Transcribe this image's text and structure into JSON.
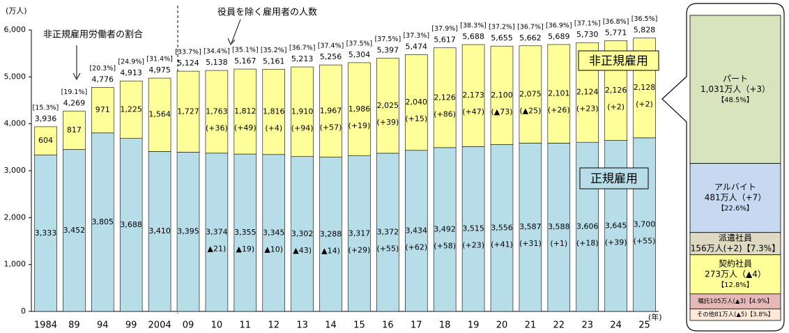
{
  "chart_data": [
    {
      "type": "stacked-bar",
      "y_unit": "(万人)",
      "x_unit": "(年)",
      "annotation_ratio": "非正規雇用労働者の割合",
      "annotation_total": "役員を除く雇用者の人数",
      "categories": [
        "1984",
        "89",
        "94",
        "99",
        "2004",
        "09",
        "10",
        "11",
        "12",
        "13",
        "14",
        "15",
        "16",
        "17",
        "18",
        "19",
        "20",
        "21",
        "22",
        "23",
        "24",
        "25"
      ],
      "series": [
        {
          "name": "正規雇用",
          "color": "#b7dde8",
          "values": [
            3333,
            3452,
            3805,
            3688,
            3410,
            3395,
            3374,
            3355,
            3345,
            3302,
            3288,
            3317,
            3372,
            3434,
            3492,
            3515,
            3556,
            3587,
            3588,
            3606,
            3645,
            3700
          ],
          "value_labels": [
            "3,333",
            "3,452",
            "3,805",
            "3,688",
            "3,410",
            "3,395",
            "3,374",
            "3,355",
            "3,345",
            "3,302",
            "3,288",
            "3,317",
            "3,372",
            "3,434",
            "3,492",
            "3,515",
            "3,556",
            "3,587",
            "3,588",
            "3,606",
            "3,645",
            "3,700"
          ],
          "change_labels": [
            null,
            null,
            null,
            null,
            null,
            null,
            "▲21)",
            "▲19)",
            "▲10)",
            "▲43)",
            "▲14)",
            "(+29)",
            "(+55)",
            "(+62)",
            "(+58)",
            "(+23)",
            "(+41)",
            "(+31)",
            "(+1)",
            "(+18)",
            "(+39)",
            "(+55)"
          ]
        },
        {
          "name": "非正規雇用",
          "color": "#ffff99",
          "values": [
            604,
            817,
            971,
            1225,
            1564,
            1727,
            1763,
            1812,
            1816,
            1910,
            1967,
            1986,
            2025,
            2040,
            2126,
            2173,
            2100,
            2075,
            2101,
            2124,
            2126,
            2128
          ],
          "value_labels": [
            "604",
            "817",
            "971",
            "1,225",
            "1,564",
            "1,727",
            "1,763",
            "1,812",
            "1,816",
            "1,910",
            "1,967",
            "1,986",
            "2,025",
            "2,040",
            "2,126",
            "2,173",
            "2,100",
            "2,075",
            "2,101",
            "2,124",
            "2,126",
            "2,128"
          ],
          "change_labels": [
            null,
            null,
            null,
            null,
            null,
            null,
            "(+36)",
            "(+49)",
            "(+4)",
            "(+94)",
            "(+57)",
            "(+19)",
            "(+39)",
            "(+15)",
            "(+86)",
            "(+47)",
            "(▲73)",
            "(▲25)",
            "(+26)",
            "(+23)",
            "(+2)",
            "(+2)"
          ]
        }
      ],
      "totals": [
        "3,936",
        "4,269",
        "4,776",
        "4,913",
        "4,975",
        "5,124",
        "5,138",
        "5,167",
        "5,161",
        "5,213",
        "5,256",
        "5,304",
        "5,397",
        "5,474",
        "5,617",
        "5,688",
        "5,655",
        "5,662",
        "5,689",
        "5,730",
        "5,771",
        "5,828"
      ],
      "ratio_labels": [
        "[15.3%]",
        "[19.1%]",
        "[20.3%]",
        "[24.9%]",
        "[31.4%]",
        "[33.7%]",
        "[34.4%]",
        "[35.1%]",
        "[35.2%]",
        "[36.7%]",
        "[37.4%]",
        "[37.5%]",
        "[37.5%]",
        "[37.3%]",
        "[37.9%]",
        "[38.3%]",
        "[37.2%]",
        "[36.7%]",
        "[36.9%]",
        "[37.1%]",
        "[36.8%]",
        "[36.5%]"
      ],
      "ylim": [
        0,
        6000
      ],
      "yticks": [
        0,
        {
          "value": 1000,
          "label": "1,000"
        },
        {
          "value": 2000,
          "label": "2,000"
        },
        {
          "value": 3000,
          "label": "3,000"
        },
        {
          "value": 4000,
          "label": "4,000"
        },
        {
          "value": 5000,
          "label": "5,000"
        },
        {
          "value": 6000,
          "label": "6,000"
        }
      ]
    },
    {
      "type": "breakdown",
      "segments": [
        {
          "lines": [
            "パート",
            "1,031万人（+3）",
            "【48.5%】"
          ],
          "share": 48.5,
          "color": "#d7e4bd"
        },
        {
          "lines": [
            "アルバイト",
            "481万人（+7）",
            "【22.6%】"
          ],
          "share": 22.6,
          "color": "#c6d9f1"
        },
        {
          "lines": [
            "派遣社員",
            "156万人(+2)【7.3%】"
          ],
          "share": 7.3,
          "color": "#ddd9c3"
        },
        {
          "lines": [
            "契約社員",
            "273万人（▲4）",
            "【12.8%】"
          ],
          "share": 12.8,
          "color": "#ffff99"
        },
        {
          "lines": [
            "嘱託105万人(▲3)【4.9%】"
          ],
          "share": 4.9,
          "color": "#e6b9b8"
        },
        {
          "lines": [
            "その他81万人(▲5)【3.8%】"
          ],
          "share": 3.8,
          "color": "#fde9d9"
        }
      ]
    }
  ]
}
